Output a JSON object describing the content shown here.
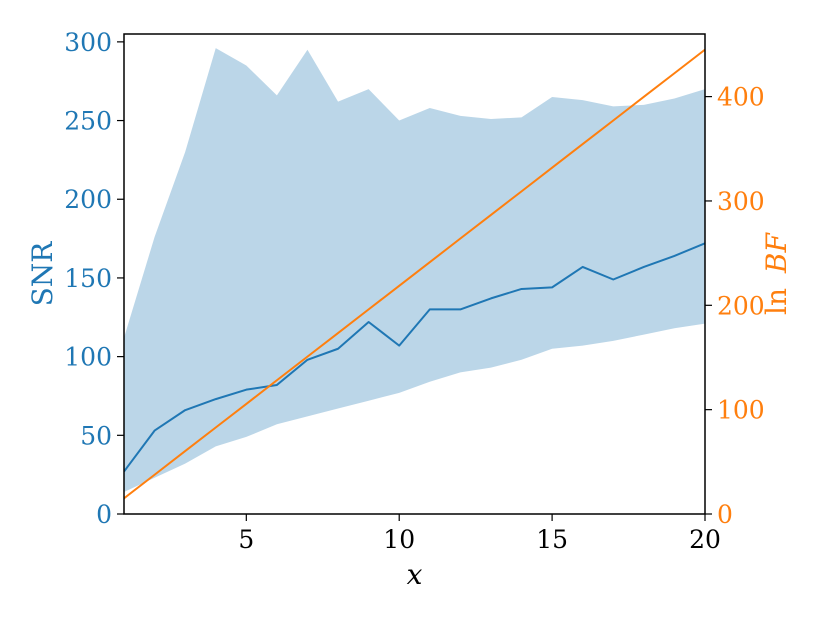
{
  "chart_data": {
    "type": "line",
    "title": "",
    "xlabel": "x",
    "ylabel": "SNR",
    "y2label_prefix": "ln",
    "y2label_var": "BF",
    "xlim": [
      1,
      20
    ],
    "ylim": [
      0,
      305
    ],
    "y2lim": [
      0,
      460
    ],
    "xticks": [
      5,
      10,
      15,
      20
    ],
    "yticks": [
      0,
      50,
      100,
      150,
      200,
      250,
      300
    ],
    "y2ticks": [
      0,
      100,
      200,
      300,
      400
    ],
    "grid": false,
    "x": [
      1,
      2,
      3,
      4,
      5,
      6,
      7,
      8,
      9,
      10,
      11,
      12,
      13,
      14,
      15,
      16,
      17,
      18,
      19,
      20
    ],
    "series": [
      {
        "axis": "left",
        "kind": "line",
        "values": [
          27,
          53,
          66,
          73,
          79,
          82,
          98,
          105,
          122,
          107,
          130,
          130,
          137,
          143,
          144,
          157,
          149,
          157,
          164,
          172
        ],
        "color": "#1f77b4"
      },
      {
        "axis": "left",
        "kind": "band",
        "upper": [
          112,
          176,
          230,
          296,
          285,
          266,
          295,
          262,
          270,
          250,
          258,
          253,
          251,
          252,
          265,
          263,
          259,
          260,
          264,
          270
        ],
        "lower": [
          14,
          23,
          32,
          43,
          49,
          57,
          62,
          67,
          72,
          77,
          84,
          90,
          93,
          98,
          105,
          107,
          110,
          114,
          118,
          121
        ],
        "color": "#1f77b4",
        "opacity": 0.3
      },
      {
        "axis": "right",
        "kind": "line",
        "values": [
          15,
          37.6,
          60.3,
          82.9,
          105.5,
          128.2,
          150.8,
          173.4,
          196.1,
          218.7,
          241.3,
          264,
          286.6,
          309.2,
          331.9,
          354.5,
          377.1,
          399.8,
          422.4,
          445
        ],
        "color": "#ff7f0e"
      }
    ],
    "colors": {
      "left_axis": "#1f77b4",
      "right_axis": "#ff7f0e",
      "frame": "#000000"
    }
  }
}
